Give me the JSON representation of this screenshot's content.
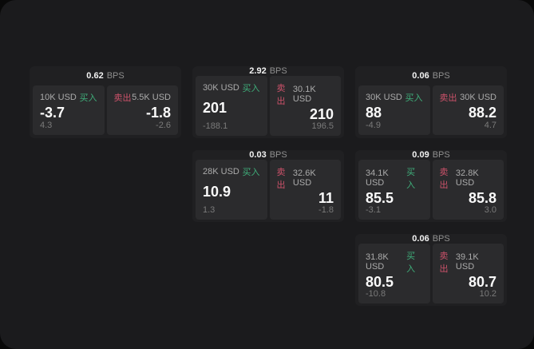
{
  "labels": {
    "bps_unit": "BPS",
    "buy": "买入",
    "sell": "卖出"
  },
  "colors": {
    "buy_color": "#3fae7a",
    "sell_color": "#cc526a",
    "panel_bg": "#1b1b1d",
    "card_bg": "#202022",
    "subpanel_bg": "#2b2b2d"
  },
  "cards": [
    {
      "bps": "0.62",
      "buy": {
        "amount": "10K USD",
        "price": "-3.7",
        "delta": "4.3"
      },
      "sell": {
        "amount": "5.5K USD",
        "price": "-1.8",
        "delta": "-2.6"
      }
    },
    {
      "bps": "2.92",
      "buy": {
        "amount": "30K USD",
        "price": "201",
        "delta": "-188.1"
      },
      "sell": {
        "amount": "30.1K USD",
        "price": "210",
        "delta": "196.5"
      }
    },
    {
      "bps": "0.06",
      "buy": {
        "amount": "30K USD",
        "price": "88",
        "delta": "-4.9"
      },
      "sell": {
        "amount": "30K USD",
        "price": "88.2",
        "delta": "4.7"
      }
    },
    {
      "bps": "0.03",
      "buy": {
        "amount": "28K USD",
        "price": "10.9",
        "delta": "1.3"
      },
      "sell": {
        "amount": "32.6K USD",
        "price": "11",
        "delta": "-1.8"
      }
    },
    {
      "bps": "0.09",
      "buy": {
        "amount": "34.1K USD",
        "price": "85.5",
        "delta": "-3.1"
      },
      "sell": {
        "amount": "32.8K USD",
        "price": "85.8",
        "delta": "3.0"
      }
    },
    {
      "bps": "0.06",
      "buy": {
        "amount": "31.8K USD",
        "price": "80.5",
        "delta": "-10.8"
      },
      "sell": {
        "amount": "39.1K USD",
        "price": "80.7",
        "delta": "10.2"
      }
    }
  ]
}
